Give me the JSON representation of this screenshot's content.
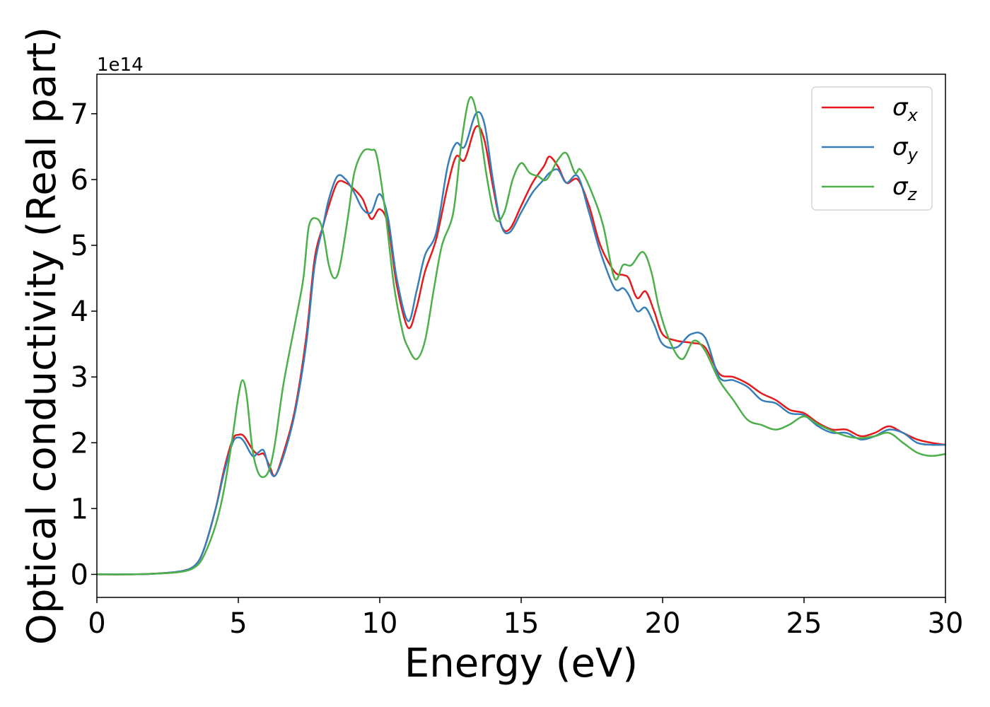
{
  "chart_data": {
    "type": "line",
    "xlabel": "Energy (eV)",
    "ylabel": "Optical conductivity (Real part)",
    "y_offset_text": "1e14",
    "xlim": [
      0,
      30
    ],
    "ylim": [
      -0.35,
      7.6
    ],
    "x_ticks": [
      0,
      5,
      10,
      15,
      20,
      25,
      30
    ],
    "y_ticks": [
      0,
      1,
      2,
      3,
      4,
      5,
      6,
      7
    ],
    "grid": false,
    "legend_position": "top-right",
    "series": [
      {
        "name": "σx",
        "symbol": "σ",
        "subscript": "x",
        "color": "#e41a1c",
        "points": [
          [
            0,
            0
          ],
          [
            1,
            0
          ],
          [
            2,
            0.01
          ],
          [
            3,
            0.05
          ],
          [
            3.5,
            0.15
          ],
          [
            3.8,
            0.4
          ],
          [
            4.2,
            1.0
          ],
          [
            4.5,
            1.6
          ],
          [
            4.8,
            2.05
          ],
          [
            5.0,
            2.12
          ],
          [
            5.2,
            2.1
          ],
          [
            5.5,
            1.9
          ],
          [
            5.7,
            1.82
          ],
          [
            5.9,
            1.83
          ],
          [
            6.1,
            1.65
          ],
          [
            6.3,
            1.5
          ],
          [
            6.6,
            1.85
          ],
          [
            7.0,
            2.5
          ],
          [
            7.4,
            3.6
          ],
          [
            7.7,
            4.8
          ],
          [
            8.0,
            5.3
          ],
          [
            8.2,
            5.6
          ],
          [
            8.5,
            5.95
          ],
          [
            8.8,
            5.95
          ],
          [
            9.1,
            5.85
          ],
          [
            9.4,
            5.7
          ],
          [
            9.7,
            5.4
          ],
          [
            10.0,
            5.55
          ],
          [
            10.3,
            5.3
          ],
          [
            10.6,
            4.4
          ],
          [
            11.0,
            3.75
          ],
          [
            11.3,
            4.05
          ],
          [
            11.6,
            4.6
          ],
          [
            12.0,
            5.1
          ],
          [
            12.4,
            5.9
          ],
          [
            12.7,
            6.35
          ],
          [
            13.0,
            6.3
          ],
          [
            13.4,
            6.8
          ],
          [
            13.7,
            6.6
          ],
          [
            14.0,
            5.9
          ],
          [
            14.3,
            5.3
          ],
          [
            14.6,
            5.25
          ],
          [
            15.0,
            5.6
          ],
          [
            15.4,
            5.95
          ],
          [
            15.8,
            6.2
          ],
          [
            16.0,
            6.35
          ],
          [
            16.3,
            6.2
          ],
          [
            16.6,
            5.95
          ],
          [
            17.0,
            6.0
          ],
          [
            17.4,
            5.6
          ],
          [
            17.8,
            5.0
          ],
          [
            18.3,
            4.6
          ],
          [
            18.6,
            4.55
          ],
          [
            18.8,
            4.5
          ],
          [
            19.1,
            4.2
          ],
          [
            19.4,
            4.3
          ],
          [
            19.7,
            4.0
          ],
          [
            20.0,
            3.65
          ],
          [
            20.5,
            3.55
          ],
          [
            21.0,
            3.52
          ],
          [
            21.5,
            3.45
          ],
          [
            22.0,
            3.05
          ],
          [
            22.5,
            3.0
          ],
          [
            23.0,
            2.9
          ],
          [
            23.5,
            2.75
          ],
          [
            24.0,
            2.65
          ],
          [
            24.5,
            2.5
          ],
          [
            25.0,
            2.45
          ],
          [
            25.5,
            2.3
          ],
          [
            26.0,
            2.2
          ],
          [
            26.5,
            2.2
          ],
          [
            27.0,
            2.1
          ],
          [
            27.5,
            2.15
          ],
          [
            28.0,
            2.25
          ],
          [
            28.5,
            2.15
          ],
          [
            29.0,
            2.05
          ],
          [
            29.5,
            2.0
          ],
          [
            30.0,
            1.97
          ]
        ]
      },
      {
        "name": "σy",
        "symbol": "σ",
        "subscript": "y",
        "color": "#377eb8",
        "points": [
          [
            0,
            0
          ],
          [
            1,
            0
          ],
          [
            2,
            0.01
          ],
          [
            3,
            0.05
          ],
          [
            3.5,
            0.15
          ],
          [
            3.8,
            0.4
          ],
          [
            4.2,
            1.0
          ],
          [
            4.5,
            1.55
          ],
          [
            4.8,
            2.0
          ],
          [
            5.0,
            2.08
          ],
          [
            5.2,
            2.02
          ],
          [
            5.5,
            1.8
          ],
          [
            5.7,
            1.85
          ],
          [
            5.9,
            1.88
          ],
          [
            6.1,
            1.6
          ],
          [
            6.3,
            1.5
          ],
          [
            6.6,
            1.8
          ],
          [
            7.0,
            2.45
          ],
          [
            7.4,
            3.5
          ],
          [
            7.7,
            4.7
          ],
          [
            8.0,
            5.3
          ],
          [
            8.2,
            5.7
          ],
          [
            8.5,
            6.05
          ],
          [
            8.8,
            6.0
          ],
          [
            9.1,
            5.8
          ],
          [
            9.4,
            5.55
          ],
          [
            9.7,
            5.5
          ],
          [
            10.0,
            5.78
          ],
          [
            10.3,
            5.4
          ],
          [
            10.6,
            4.5
          ],
          [
            11.0,
            3.85
          ],
          [
            11.3,
            4.3
          ],
          [
            11.6,
            4.85
          ],
          [
            12.0,
            5.2
          ],
          [
            12.4,
            6.2
          ],
          [
            12.7,
            6.55
          ],
          [
            13.0,
            6.5
          ],
          [
            13.4,
            7.0
          ],
          [
            13.7,
            6.85
          ],
          [
            14.0,
            6.0
          ],
          [
            14.3,
            5.3
          ],
          [
            14.6,
            5.2
          ],
          [
            15.0,
            5.5
          ],
          [
            15.4,
            5.8
          ],
          [
            15.8,
            6.0
          ],
          [
            16.0,
            6.1
          ],
          [
            16.3,
            6.15
          ],
          [
            16.6,
            5.95
          ],
          [
            17.0,
            6.05
          ],
          [
            17.4,
            5.5
          ],
          [
            17.8,
            4.9
          ],
          [
            18.3,
            4.35
          ],
          [
            18.6,
            4.35
          ],
          [
            18.8,
            4.25
          ],
          [
            19.1,
            4.0
          ],
          [
            19.4,
            4.05
          ],
          [
            19.7,
            3.8
          ],
          [
            20.0,
            3.5
          ],
          [
            20.5,
            3.45
          ],
          [
            21.0,
            3.65
          ],
          [
            21.5,
            3.6
          ],
          [
            22.0,
            3.0
          ],
          [
            22.5,
            2.95
          ],
          [
            23.0,
            2.85
          ],
          [
            23.5,
            2.65
          ],
          [
            24.0,
            2.6
          ],
          [
            24.5,
            2.45
          ],
          [
            25.0,
            2.42
          ],
          [
            25.5,
            2.25
          ],
          [
            26.0,
            2.15
          ],
          [
            26.5,
            2.15
          ],
          [
            27.0,
            2.05
          ],
          [
            27.5,
            2.1
          ],
          [
            28.0,
            2.2
          ],
          [
            28.5,
            2.15
          ],
          [
            29.0,
            2.0
          ],
          [
            29.5,
            1.97
          ],
          [
            30.0,
            1.97
          ]
        ]
      },
      {
        "name": "σz",
        "symbol": "σ",
        "subscript": "z",
        "color": "#4daf4a",
        "points": [
          [
            0,
            0
          ],
          [
            1,
            0
          ],
          [
            2,
            0.01
          ],
          [
            3,
            0.04
          ],
          [
            3.5,
            0.12
          ],
          [
            3.8,
            0.3
          ],
          [
            4.2,
            0.75
          ],
          [
            4.5,
            1.3
          ],
          [
            4.8,
            2.1
          ],
          [
            5.0,
            2.7
          ],
          [
            5.15,
            2.95
          ],
          [
            5.3,
            2.7
          ],
          [
            5.5,
            1.9
          ],
          [
            5.7,
            1.55
          ],
          [
            5.9,
            1.48
          ],
          [
            6.1,
            1.6
          ],
          [
            6.3,
            2.0
          ],
          [
            6.6,
            2.9
          ],
          [
            7.0,
            3.8
          ],
          [
            7.3,
            4.5
          ],
          [
            7.5,
            5.3
          ],
          [
            7.8,
            5.4
          ],
          [
            8.0,
            5.2
          ],
          [
            8.2,
            4.7
          ],
          [
            8.4,
            4.5
          ],
          [
            8.6,
            4.7
          ],
          [
            8.9,
            5.5
          ],
          [
            9.1,
            6.1
          ],
          [
            9.4,
            6.42
          ],
          [
            9.7,
            6.45
          ],
          [
            9.9,
            6.35
          ],
          [
            10.2,
            5.5
          ],
          [
            10.5,
            4.4
          ],
          [
            10.8,
            3.7
          ],
          [
            11.0,
            3.45
          ],
          [
            11.3,
            3.27
          ],
          [
            11.6,
            3.55
          ],
          [
            11.9,
            4.3
          ],
          [
            12.2,
            5.0
          ],
          [
            12.6,
            5.5
          ],
          [
            12.9,
            6.6
          ],
          [
            13.2,
            7.25
          ],
          [
            13.5,
            6.85
          ],
          [
            13.8,
            6.0
          ],
          [
            14.1,
            5.4
          ],
          [
            14.4,
            5.5
          ],
          [
            14.7,
            6.0
          ],
          [
            15.0,
            6.25
          ],
          [
            15.3,
            6.1
          ],
          [
            15.6,
            6.05
          ],
          [
            15.9,
            6.0
          ],
          [
            16.3,
            6.3
          ],
          [
            16.6,
            6.4
          ],
          [
            16.9,
            6.1
          ],
          [
            17.1,
            6.15
          ],
          [
            17.5,
            5.8
          ],
          [
            17.9,
            5.3
          ],
          [
            18.3,
            4.5
          ],
          [
            18.6,
            4.7
          ],
          [
            18.9,
            4.7
          ],
          [
            19.3,
            4.9
          ],
          [
            19.6,
            4.6
          ],
          [
            19.9,
            4.0
          ],
          [
            20.3,
            3.5
          ],
          [
            20.7,
            3.27
          ],
          [
            21.1,
            3.55
          ],
          [
            21.5,
            3.4
          ],
          [
            22.0,
            2.95
          ],
          [
            22.5,
            2.65
          ],
          [
            23.0,
            2.35
          ],
          [
            23.5,
            2.27
          ],
          [
            24.0,
            2.2
          ],
          [
            24.5,
            2.28
          ],
          [
            25.0,
            2.4
          ],
          [
            25.5,
            2.28
          ],
          [
            26.0,
            2.18
          ],
          [
            26.5,
            2.1
          ],
          [
            27.0,
            2.07
          ],
          [
            27.5,
            2.1
          ],
          [
            28.0,
            2.15
          ],
          [
            28.5,
            2.0
          ],
          [
            29.0,
            1.85
          ],
          [
            29.5,
            1.8
          ],
          [
            30.0,
            1.83
          ]
        ]
      }
    ]
  }
}
